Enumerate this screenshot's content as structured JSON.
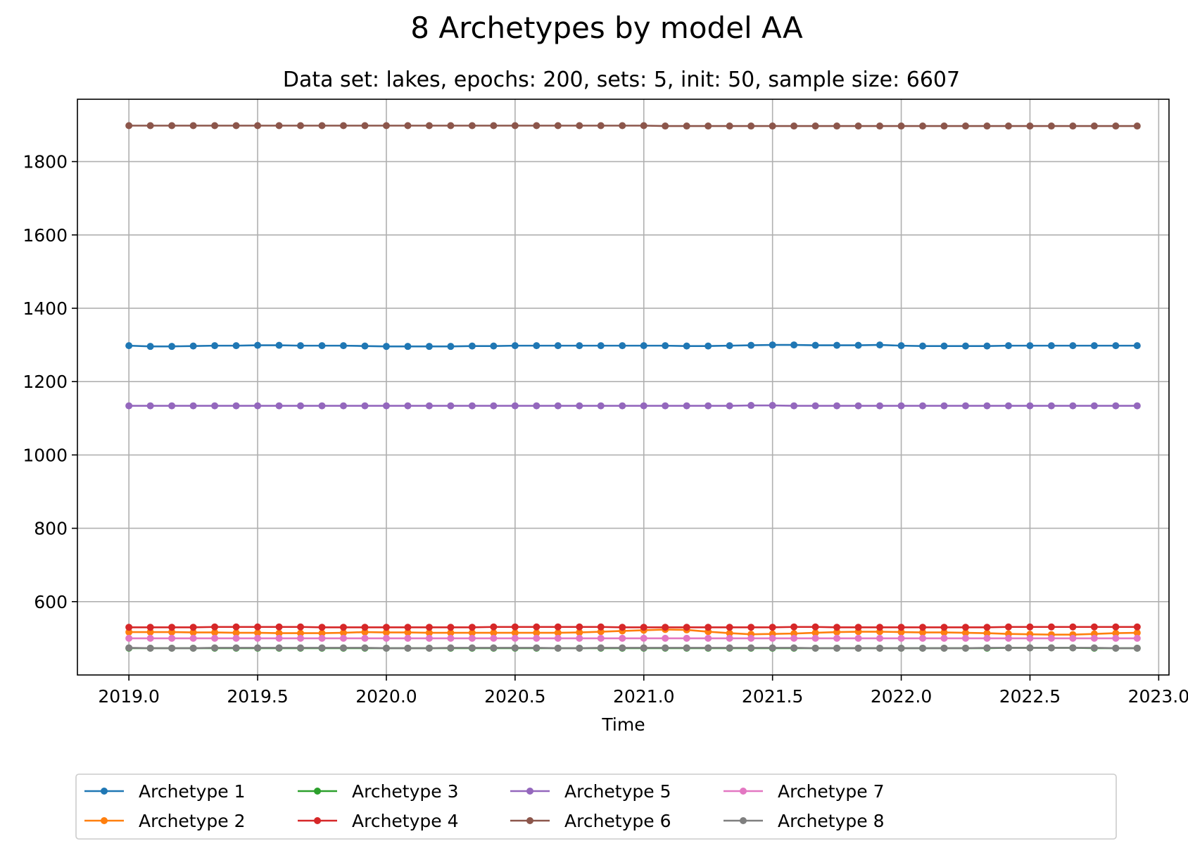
{
  "chart_data": {
    "type": "line",
    "title": "8 Archetypes by model AA",
    "subtitle": "Data set: lakes, epochs: 200, sets: 5, init: 50, sample size: 6607",
    "xlabel": "Time",
    "ylabel": "",
    "xlim": [
      2018.8,
      2023.04
    ],
    "ylim": [
      400,
      1970
    ],
    "x_ticks": [
      2019.0,
      2019.5,
      2020.0,
      2020.5,
      2021.0,
      2021.5,
      2022.0,
      2022.5,
      2023.0
    ],
    "x_tick_labels": [
      "2019.0",
      "2019.5",
      "2020.0",
      "2020.5",
      "2021.0",
      "2021.5",
      "2022.0",
      "2022.5",
      "2023.0"
    ],
    "y_ticks": [
      600,
      800,
      1000,
      1200,
      1400,
      1600,
      1800
    ],
    "y_tick_labels": [
      "600",
      "800",
      "1000",
      "1200",
      "1400",
      "1600",
      "1800"
    ],
    "grid": true,
    "legend_position": "bottom-center",
    "x_start": 2019.0,
    "x_step": 0.08333,
    "series": [
      {
        "name": "Archetype 1",
        "color": "#1f77b4",
        "values": [
          1298,
          1296,
          1296,
          1297,
          1298,
          1298,
          1299,
          1299,
          1298,
          1298,
          1298,
          1297,
          1296,
          1296,
          1296,
          1296,
          1297,
          1297,
          1298,
          1298,
          1298,
          1298,
          1298,
          1298,
          1298,
          1298,
          1297,
          1297,
          1298,
          1299,
          1300,
          1300,
          1299,
          1299,
          1299,
          1300,
          1298,
          1297,
          1297,
          1297,
          1297,
          1298,
          1298,
          1298,
          1298,
          1298,
          1298,
          1298
        ]
      },
      {
        "name": "Archetype 2",
        "color": "#ff7f0e",
        "values": [
          517,
          517,
          517,
          516,
          516,
          515,
          515,
          514,
          514,
          514,
          515,
          517,
          516,
          516,
          515,
          515,
          515,
          515,
          515,
          515,
          515,
          516,
          518,
          520,
          522,
          524,
          523,
          518,
          514,
          511,
          512,
          513,
          515,
          517,
          518,
          518,
          517,
          516,
          516,
          515,
          514,
          512,
          511,
          510,
          510,
          512,
          514,
          515
        ]
      },
      {
        "name": "Archetype 3",
        "color": "#2ca02c",
        "values": [
          473,
          473,
          473,
          473,
          473,
          473,
          473,
          473,
          473,
          473,
          473,
          473,
          473,
          473,
          473,
          473,
          473,
          473,
          473,
          473,
          473,
          473,
          473,
          473,
          473,
          473,
          473,
          473,
          473,
          473,
          473,
          473,
          473,
          473,
          473,
          473,
          473,
          473,
          473,
          473,
          473,
          474,
          474,
          474,
          474,
          473,
          473,
          473
        ]
      },
      {
        "name": "Archetype 4",
        "color": "#d62728",
        "values": [
          530,
          530,
          530,
          530,
          531,
          531,
          531,
          531,
          531,
          530,
          530,
          530,
          530,
          530,
          530,
          530,
          530,
          531,
          531,
          531,
          531,
          531,
          531,
          530,
          530,
          530,
          530,
          530,
          530,
          530,
          530,
          531,
          531,
          530,
          530,
          530,
          530,
          530,
          530,
          530,
          530,
          531,
          531,
          531,
          531,
          531,
          531,
          531
        ]
      },
      {
        "name": "Archetype 5",
        "color": "#9467bd",
        "values": [
          1134,
          1134,
          1134,
          1134,
          1134,
          1134,
          1134,
          1134,
          1134,
          1134,
          1134,
          1134,
          1134,
          1134,
          1134,
          1134,
          1134,
          1134,
          1134,
          1134,
          1134,
          1134,
          1134,
          1134,
          1134,
          1134,
          1134,
          1134,
          1134,
          1135,
          1135,
          1134,
          1134,
          1134,
          1134,
          1134,
          1134,
          1134,
          1134,
          1134,
          1134,
          1134,
          1134,
          1134,
          1134,
          1134,
          1134,
          1134
        ]
      },
      {
        "name": "Archetype 6",
        "color": "#8c564b",
        "values": [
          1898,
          1898,
          1898,
          1898,
          1898,
          1898,
          1898,
          1898,
          1898,
          1898,
          1898,
          1898,
          1898,
          1898,
          1898,
          1898,
          1898,
          1898,
          1898,
          1898,
          1898,
          1898,
          1898,
          1898,
          1898,
          1897,
          1897,
          1897,
          1897,
          1897,
          1897,
          1897,
          1897,
          1897,
          1897,
          1897,
          1897,
          1897,
          1897,
          1897,
          1897,
          1897,
          1897,
          1897,
          1897,
          1897,
          1897,
          1897
        ]
      },
      {
        "name": "Archetype 7",
        "color": "#e377c2",
        "values": [
          500,
          500,
          500,
          500,
          500,
          500,
          500,
          500,
          500,
          500,
          500,
          500,
          500,
          500,
          500,
          500,
          500,
          500,
          500,
          500,
          500,
          500,
          500,
          500,
          500,
          500,
          500,
          500,
          500,
          500,
          500,
          500,
          500,
          500,
          500,
          500,
          500,
          500,
          500,
          500,
          500,
          500,
          500,
          500,
          500,
          500,
          500,
          500
        ]
      },
      {
        "name": "Archetype 8",
        "color": "#7f7f7f",
        "values": [
          474,
          473,
          473,
          473,
          474,
          474,
          474,
          474,
          474,
          474,
          474,
          474,
          473,
          473,
          473,
          474,
          474,
          474,
          474,
          474,
          473,
          473,
          474,
          474,
          474,
          474,
          474,
          474,
          474,
          474,
          474,
          474,
          473,
          473,
          473,
          473,
          473,
          473,
          473,
          473,
          474,
          474,
          474,
          474,
          474,
          474,
          473,
          473
        ]
      }
    ]
  }
}
